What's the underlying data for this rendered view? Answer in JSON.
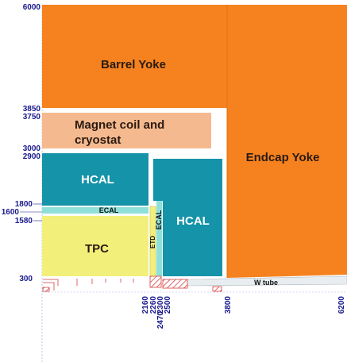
{
  "regions": {
    "barrel_yoke": "Barrel Yoke",
    "endcap_yoke": "Endcap Yoke",
    "magnet_line1": "Magnet coil and",
    "magnet_line2": "cryostat",
    "hcal_barrel": "HCAL",
    "hcal_endcap": "HCAL",
    "ecal_barrel": "ECAL",
    "ecal_endcap": "ECAL",
    "tpc": "TPC",
    "etd": "ETD",
    "w_tube": "W tube"
  },
  "y_ticks": [
    "6000",
    "3850",
    "3750",
    "3000",
    "2900",
    "1800",
    "1600",
    "1580",
    "300"
  ],
  "x_ticks": [
    "2160",
    "2260",
    "2300",
    "2470",
    "2500",
    "3800",
    "6200"
  ],
  "colors": {
    "yoke": "#f5821f",
    "magnet": "#f5b98f",
    "hcal": "#1593a8",
    "ecal": "#8fe0d8",
    "tpc": "#f2f07a",
    "ticks": "#1a1a8c",
    "hatch": "#d84040"
  }
}
